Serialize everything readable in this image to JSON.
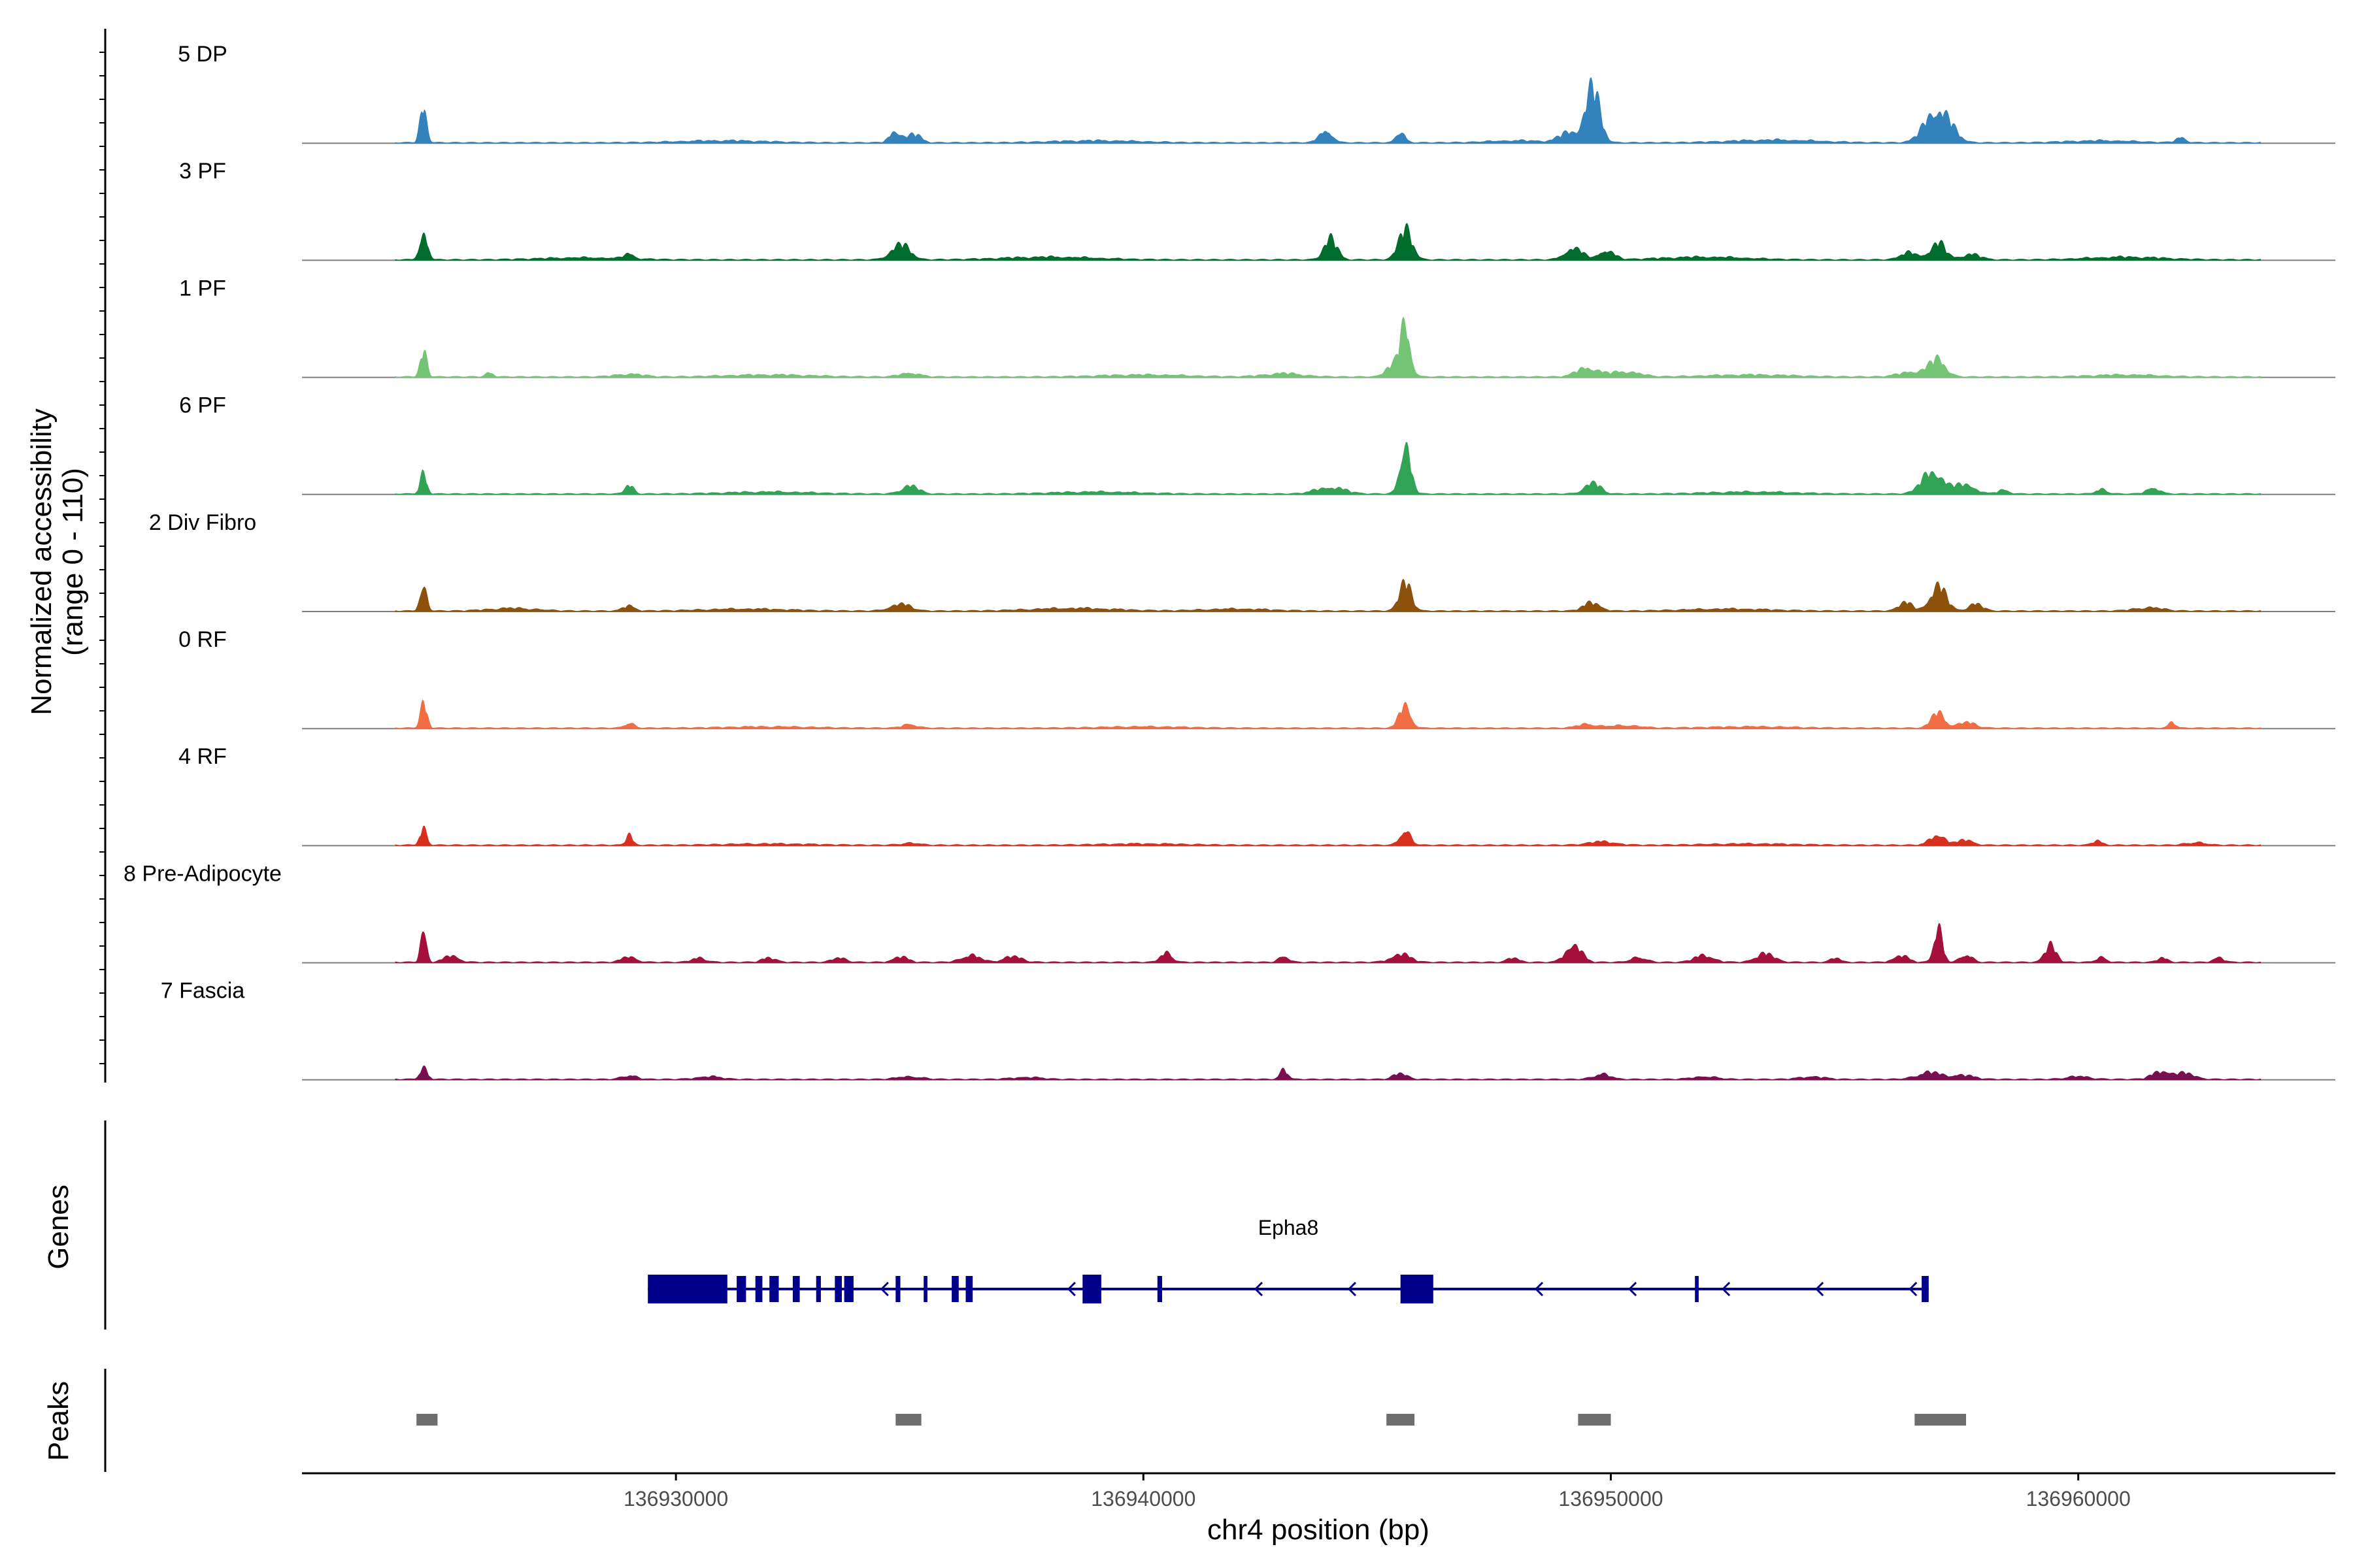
{
  "chart_data": {
    "type": "area",
    "title": "",
    "ylabel_line1": "Normalized accessibility",
    "ylabel_line2": "(range 0 - 110)",
    "ylim": [
      0,
      110
    ],
    "xlabel": "chr4 position (bp)",
    "xlim": [
      136922000,
      136965500
    ],
    "x_ticks": [
      136930000,
      136940000,
      136950000,
      136960000
    ],
    "x_tick_labels": [
      "136930000",
      "136940000",
      "136950000",
      "136960000"
    ],
    "tracks": [
      {
        "name": "5 DP",
        "color": "#3182bd",
        "peaks": [
          [
            136924600,
            55,
            70
          ],
          [
            136934700,
            18,
            120
          ],
          [
            136935100,
            12,
            140
          ],
          [
            136943900,
            20,
            130
          ],
          [
            136945500,
            18,
            90
          ],
          [
            136949600,
            78,
            160
          ],
          [
            136949100,
            14,
            200
          ],
          [
            136957000,
            52,
            260
          ],
          [
            136962200,
            8,
            100
          ],
          [
            136948000,
            3,
            600
          ],
          [
            136953500,
            4,
            900
          ],
          [
            136931000,
            3,
            900
          ],
          [
            136939000,
            3,
            900
          ],
          [
            136960500,
            3,
            700
          ]
        ]
      },
      {
        "name": "3 PF",
        "color": "#006d2c",
        "peaks": [
          [
            136924600,
            45,
            80
          ],
          [
            136929000,
            8,
            100
          ],
          [
            136934800,
            22,
            200
          ],
          [
            136944000,
            30,
            140
          ],
          [
            136945600,
            42,
            150
          ],
          [
            136949200,
            18,
            180
          ],
          [
            136949900,
            14,
            160
          ],
          [
            136957000,
            24,
            160
          ],
          [
            136956400,
            10,
            200
          ],
          [
            136957700,
            8,
            200
          ],
          [
            136928000,
            3,
            900
          ],
          [
            136938000,
            4,
            1000
          ],
          [
            136952000,
            4,
            900
          ],
          [
            136961000,
            4,
            800
          ]
        ]
      },
      {
        "name": "1 PF",
        "color": "#74c476",
        "peaks": [
          [
            136924600,
            36,
            70
          ],
          [
            136926000,
            6,
            80
          ],
          [
            136945600,
            80,
            110
          ],
          [
            136945300,
            14,
            140
          ],
          [
            136949500,
            14,
            220
          ],
          [
            136950300,
            8,
            300
          ],
          [
            136957000,
            24,
            170
          ],
          [
            136956500,
            8,
            300
          ],
          [
            136929000,
            4,
            300
          ],
          [
            136935000,
            6,
            200
          ],
          [
            136943000,
            5,
            400
          ],
          [
            136932000,
            3,
            900
          ],
          [
            136940000,
            3,
            900
          ],
          [
            136953000,
            3,
            900
          ],
          [
            136961000,
            3,
            700
          ]
        ]
      },
      {
        "name": "6 PF",
        "color": "#31a354",
        "peaks": [
          [
            136924600,
            30,
            70
          ],
          [
            136929000,
            12,
            90
          ],
          [
            136935000,
            12,
            180
          ],
          [
            136944000,
            10,
            300
          ],
          [
            136945600,
            78,
            110
          ],
          [
            136949600,
            16,
            170
          ],
          [
            136956900,
            34,
            230
          ],
          [
            136957600,
            14,
            200
          ],
          [
            136958400,
            6,
            120
          ],
          [
            136960500,
            6,
            120
          ],
          [
            136961600,
            10,
            130
          ],
          [
            136932000,
            3,
            900
          ],
          [
            136939000,
            3,
            900
          ],
          [
            136953000,
            3,
            900
          ]
        ]
      },
      {
        "name": "2 Div Fibro",
        "color": "#8c510a",
        "peaks": [
          [
            136924600,
            44,
            70
          ],
          [
            136929000,
            8,
            120
          ],
          [
            136934800,
            10,
            220
          ],
          [
            136945600,
            40,
            130
          ],
          [
            136949600,
            12,
            180
          ],
          [
            136957000,
            36,
            170
          ],
          [
            136956300,
            12,
            150
          ],
          [
            136957800,
            10,
            150
          ],
          [
            136961500,
            5,
            300
          ],
          [
            136926500,
            4,
            500
          ],
          [
            136931500,
            3,
            900
          ],
          [
            136938500,
            4,
            900
          ],
          [
            136942000,
            3,
            700
          ],
          [
            136952500,
            3,
            900
          ]
        ]
      },
      {
        "name": "0 RF",
        "color": "#f16d43",
        "peaks": [
          [
            136924600,
            36,
            70
          ],
          [
            136929000,
            8,
            100
          ],
          [
            136935000,
            6,
            150
          ],
          [
            136945600,
            34,
            120
          ],
          [
            136949500,
            6,
            200
          ],
          [
            136950300,
            4,
            300
          ],
          [
            136957000,
            22,
            140
          ],
          [
            136957600,
            8,
            200
          ],
          [
            136962000,
            10,
            70
          ],
          [
            136932000,
            2,
            900
          ],
          [
            136940000,
            2,
            900
          ],
          [
            136953000,
            2,
            900
          ]
        ]
      },
      {
        "name": "4 RF",
        "color": "#d7301f",
        "peaks": [
          [
            136924600,
            24,
            70
          ],
          [
            136929000,
            14,
            70
          ],
          [
            136935000,
            3,
            200
          ],
          [
            136945600,
            24,
            110
          ],
          [
            136949800,
            5,
            300
          ],
          [
            136957000,
            16,
            160
          ],
          [
            136957600,
            8,
            150
          ],
          [
            136960400,
            6,
            100
          ],
          [
            136962500,
            4,
            200
          ],
          [
            136932000,
            2,
            900
          ],
          [
            136940000,
            2,
            900
          ],
          [
            136953000,
            2,
            900
          ]
        ]
      },
      {
        "name": "8 Pre-Adipocyte",
        "color": "#a50f3b",
        "peaks": [
          [
            136924600,
            60,
            60
          ],
          [
            136925200,
            10,
            150
          ],
          [
            136929000,
            8,
            150
          ],
          [
            136930500,
            6,
            150
          ],
          [
            136932000,
            6,
            150
          ],
          [
            136933500,
            6,
            150
          ],
          [
            136934800,
            8,
            150
          ],
          [
            136936300,
            10,
            200
          ],
          [
            136937200,
            8,
            200
          ],
          [
            136940500,
            14,
            120
          ],
          [
            136943000,
            10,
            100
          ],
          [
            136945500,
            12,
            200
          ],
          [
            136947900,
            6,
            120
          ],
          [
            136949200,
            28,
            160
          ],
          [
            136950600,
            8,
            150
          ],
          [
            136952000,
            10,
            200
          ],
          [
            136953300,
            12,
            200
          ],
          [
            136954800,
            6,
            100
          ],
          [
            136956200,
            10,
            150
          ],
          [
            136957000,
            50,
            90
          ],
          [
            136957600,
            12,
            120
          ],
          [
            136959400,
            24,
            120
          ],
          [
            136960500,
            8,
            100
          ],
          [
            136961800,
            6,
            100
          ],
          [
            136963000,
            8,
            100
          ]
        ]
      },
      {
        "name": "7 Fascia",
        "color": "#7a0f4f",
        "peaks": [
          [
            136924600,
            16,
            80
          ],
          [
            136929000,
            6,
            150
          ],
          [
            136930700,
            4,
            250
          ],
          [
            136935000,
            4,
            250
          ],
          [
            136937500,
            3,
            300
          ],
          [
            136943000,
            14,
            80
          ],
          [
            136945500,
            8,
            150
          ],
          [
            136949800,
            8,
            170
          ],
          [
            136952000,
            4,
            250
          ],
          [
            136954300,
            4,
            250
          ],
          [
            136956800,
            10,
            250
          ],
          [
            136957500,
            6,
            250
          ],
          [
            136960000,
            4,
            250
          ],
          [
            136961800,
            12,
            200
          ],
          [
            136962300,
            8,
            200
          ]
        ]
      }
    ],
    "gene": {
      "name": "Epha8",
      "strand": "-",
      "start": 136929400,
      "end": 136956800,
      "exons": [
        [
          136929400,
          136931100
        ],
        [
          136931300,
          136931500
        ],
        [
          136931700,
          136931850
        ],
        [
          136932000,
          136932200
        ],
        [
          136932500,
          136932650
        ],
        [
          136933000,
          136933100
        ],
        [
          136933400,
          136933550
        ],
        [
          136933600,
          136933800
        ],
        [
          136934700,
          136934800
        ],
        [
          136935300,
          136935380
        ],
        [
          136935900,
          136936050
        ],
        [
          136936200,
          136936350
        ],
        [
          136938700,
          136939100
        ],
        [
          136940300,
          136940400
        ],
        [
          136945500,
          136946200
        ],
        [
          136951800,
          136951880
        ],
        [
          136956650,
          136956800
        ]
      ]
    },
    "peak_regions": [
      [
        136924450,
        136924900
      ],
      [
        136934700,
        136935250
      ],
      [
        136945200,
        136945800
      ],
      [
        136949300,
        136950000
      ],
      [
        136956500,
        136957600
      ]
    ],
    "panel_labels": {
      "genes": "Genes",
      "peaks": "Peaks"
    }
  }
}
